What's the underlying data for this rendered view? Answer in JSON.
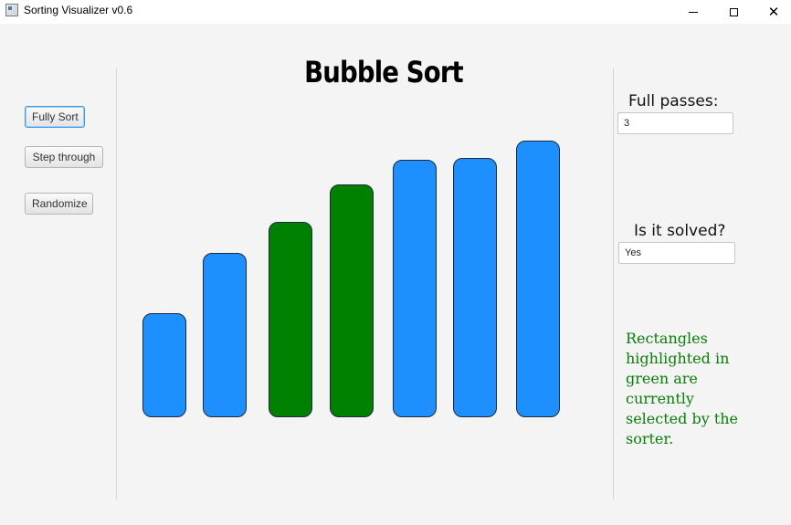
{
  "window": {
    "title": "Sorting Visualizer v0.6",
    "minimize_glyph": "",
    "close_glyph": "✕"
  },
  "controls": {
    "fully_sort_label": "Fully Sort",
    "step_through_label": "Step through",
    "randomize_label": "Randomize"
  },
  "heading": "Bubble Sort",
  "chart_data": {
    "type": "bar",
    "values": [
      114,
      180,
      214,
      255,
      282,
      284,
      303
    ],
    "highlighted": [
      false,
      false,
      true,
      true,
      false,
      false,
      false
    ],
    "colors": {
      "default": "#1e8fff",
      "highlighted": "#008000"
    }
  },
  "info": {
    "passes_label": "Full passes:",
    "passes_value": "3",
    "solved_label": "Is it solved?",
    "solved_value": "Yes",
    "note": "Rectangles highlighted in green are currently selected by the sorter.",
    "note_color": "#0a7d0a"
  }
}
